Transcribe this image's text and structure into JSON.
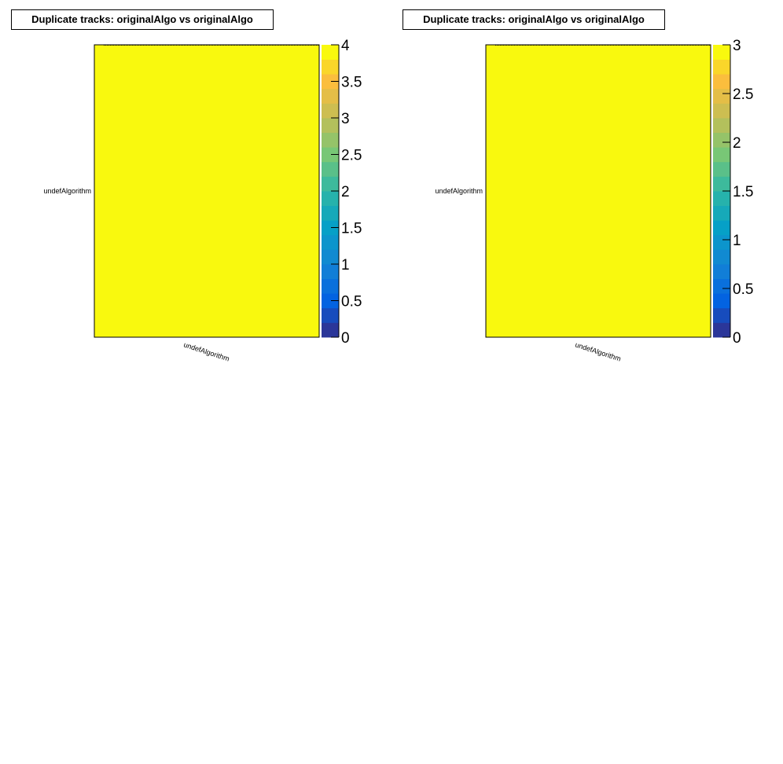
{
  "chart_data": [
    {
      "type": "heatmap",
      "title": "Duplicate tracks: originalAlgo vs originalAlgo",
      "x_categories": [
        "undefAlgorithm"
      ],
      "y_categories": [
        "undefAlgorithm"
      ],
      "values": [
        [
          4
        ]
      ],
      "zlim": [
        0,
        4
      ],
      "colorbar_ticks": [
        0,
        0.5,
        1,
        1.5,
        2,
        2.5,
        3,
        3.5,
        4
      ],
      "colorbar_tick_labels": [
        "0",
        "0.5",
        "1",
        "1.5",
        "2",
        "2.5",
        "3",
        "3.5",
        "4"
      ],
      "colormap": "parula",
      "cell_color": "#f9f90e"
    },
    {
      "type": "heatmap",
      "title": "Duplicate tracks: originalAlgo vs originalAlgo",
      "x_categories": [
        "undefAlgorithm"
      ],
      "y_categories": [
        "undefAlgorithm"
      ],
      "values": [
        [
          3
        ]
      ],
      "zlim": [
        0,
        3
      ],
      "colorbar_ticks": [
        0,
        0.5,
        1,
        1.5,
        2,
        2.5,
        3
      ],
      "colorbar_tick_labels": [
        "0",
        "0.5",
        "1",
        "1.5",
        "2",
        "2.5",
        "3"
      ],
      "colormap": "parula",
      "cell_color": "#f9f90e"
    }
  ]
}
